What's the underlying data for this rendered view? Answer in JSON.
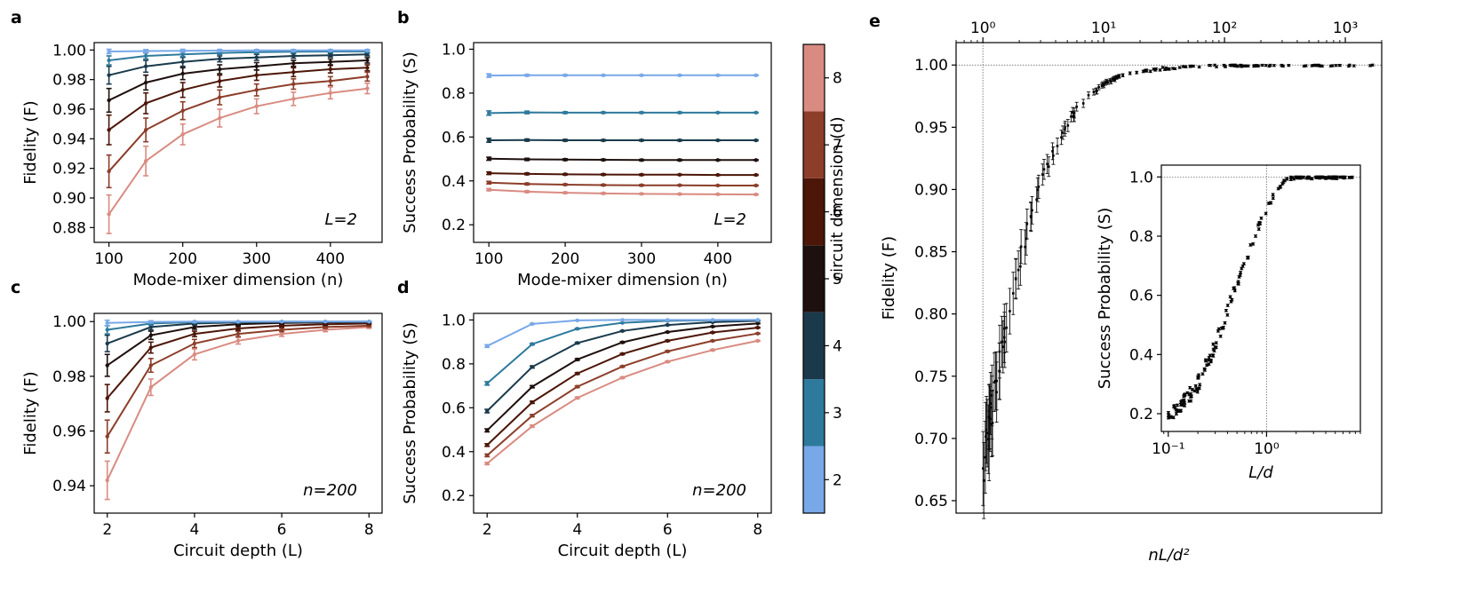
{
  "colorbar": {
    "label": "circuit dimension (d)",
    "ticks": [
      "2",
      "3",
      "4",
      "5",
      "6",
      "7",
      "8"
    ],
    "colors": [
      "#78a8e8",
      "#2e7a9c",
      "#1a3a4c",
      "#1e100e",
      "#4c1608",
      "#8c3e2a",
      "#d98b82"
    ]
  },
  "chart_data": [
    {
      "panel": "a",
      "type": "line",
      "xlabel": "Mode-mixer dimension (n)",
      "ylabel": "Fidelity (F)",
      "annotation": "L=2",
      "xlim": [
        80,
        470
      ],
      "ylim": [
        0.87,
        1.005
      ],
      "xticks": [
        100,
        200,
        300,
        400
      ],
      "yticks": [
        0.88,
        0.9,
        0.92,
        0.94,
        0.96,
        0.98,
        1.0
      ],
      "ytick_labels": [
        "0.88",
        "0.90",
        "0.92",
        "0.94",
        "0.96",
        "0.98",
        "1.00"
      ],
      "x": [
        100,
        150,
        200,
        250,
        300,
        350,
        400,
        450
      ],
      "series": [
        {
          "d": 2,
          "values": [
            0.999,
            0.9993,
            0.9995,
            0.9996,
            0.9997,
            0.9997,
            0.9998,
            0.9998
          ],
          "err": [
            0.0015,
            0.001,
            0.001,
            0.0008,
            0.0006,
            0.0006,
            0.0005,
            0.0005
          ]
        },
        {
          "d": 3,
          "values": [
            0.993,
            0.996,
            0.997,
            0.998,
            0.9985,
            0.9988,
            0.999,
            0.999
          ],
          "err": [
            0.003,
            0.002,
            0.0015,
            0.001,
            0.001,
            0.0008,
            0.0008,
            0.0008
          ]
        },
        {
          "d": 4,
          "values": [
            0.983,
            0.989,
            0.992,
            0.994,
            0.995,
            0.996,
            0.9965,
            0.997
          ],
          "err": [
            0.006,
            0.004,
            0.003,
            0.002,
            0.002,
            0.0015,
            0.0012,
            0.001
          ]
        },
        {
          "d": 5,
          "values": [
            0.966,
            0.978,
            0.984,
            0.987,
            0.989,
            0.991,
            0.992,
            0.993
          ],
          "err": [
            0.008,
            0.005,
            0.004,
            0.003,
            0.0025,
            0.002,
            0.002,
            0.0018
          ]
        },
        {
          "d": 6,
          "values": [
            0.946,
            0.964,
            0.973,
            0.979,
            0.983,
            0.985,
            0.987,
            0.988
          ],
          "err": [
            0.01,
            0.007,
            0.005,
            0.004,
            0.0035,
            0.003,
            0.0025,
            0.002
          ]
        },
        {
          "d": 7,
          "values": [
            0.918,
            0.946,
            0.959,
            0.968,
            0.973,
            0.977,
            0.979,
            0.982
          ],
          "err": [
            0.011,
            0.008,
            0.006,
            0.005,
            0.004,
            0.0035,
            0.003,
            0.003
          ]
        },
        {
          "d": 8,
          "values": [
            0.889,
            0.925,
            0.943,
            0.954,
            0.962,
            0.967,
            0.971,
            0.974
          ],
          "err": [
            0.013,
            0.01,
            0.007,
            0.006,
            0.005,
            0.0045,
            0.004,
            0.0035
          ]
        }
      ]
    },
    {
      "panel": "b",
      "type": "line",
      "xlabel": "Mode-mixer dimension (n)",
      "ylabel": "Success Probability (S)",
      "annotation": "L=2",
      "xlim": [
        80,
        470
      ],
      "ylim": [
        0.12,
        1.03
      ],
      "xticks": [
        100,
        200,
        300,
        400
      ],
      "yticks": [
        0.2,
        0.4,
        0.6,
        0.8,
        1.0
      ],
      "ytick_labels": [
        "0.2",
        "0.4",
        "0.6",
        "0.8",
        "1.0"
      ],
      "x": [
        100,
        150,
        200,
        250,
        300,
        350,
        400,
        450
      ],
      "series": [
        {
          "d": 2,
          "values": [
            0.88,
            0.881,
            0.881,
            0.881,
            0.881,
            0.881,
            0.881,
            0.881
          ],
          "err": [
            0.008,
            0.004,
            0.003,
            0.002,
            0.002,
            0.002,
            0.002,
            0.002
          ]
        },
        {
          "d": 3,
          "values": [
            0.709,
            0.712,
            0.711,
            0.711,
            0.711,
            0.711,
            0.711,
            0.711
          ],
          "err": [
            0.01,
            0.006,
            0.004,
            0.003,
            0.003,
            0.003,
            0.002,
            0.002
          ]
        },
        {
          "d": 4,
          "values": [
            0.585,
            0.586,
            0.585,
            0.585,
            0.585,
            0.585,
            0.585,
            0.585
          ],
          "err": [
            0.009,
            0.005,
            0.004,
            0.003,
            0.003,
            0.003,
            0.002,
            0.002
          ]
        },
        {
          "d": 5,
          "values": [
            0.501,
            0.498,
            0.497,
            0.496,
            0.495,
            0.495,
            0.495,
            0.495
          ],
          "err": [
            0.007,
            0.005,
            0.004,
            0.003,
            0.003,
            0.003,
            0.002,
            0.002
          ]
        },
        {
          "d": 6,
          "values": [
            0.435,
            0.432,
            0.43,
            0.429,
            0.428,
            0.428,
            0.427,
            0.427
          ],
          "err": [
            0.006,
            0.004,
            0.003,
            0.003,
            0.003,
            0.002,
            0.002,
            0.002
          ]
        },
        {
          "d": 7,
          "values": [
            0.392,
            0.386,
            0.383,
            0.381,
            0.38,
            0.38,
            0.379,
            0.379
          ],
          "err": [
            0.006,
            0.004,
            0.003,
            0.003,
            0.003,
            0.002,
            0.002,
            0.002
          ]
        },
        {
          "d": 8,
          "values": [
            0.36,
            0.351,
            0.346,
            0.343,
            0.341,
            0.34,
            0.339,
            0.338
          ],
          "err": [
            0.005,
            0.004,
            0.003,
            0.003,
            0.002,
            0.002,
            0.002,
            0.002
          ]
        }
      ]
    },
    {
      "panel": "c",
      "type": "line",
      "xlabel": "Circuit depth (L)",
      "ylabel": "Fidelity (F)",
      "annotation": "n=200",
      "xlim": [
        1.7,
        8.3
      ],
      "ylim": [
        0.93,
        1.003
      ],
      "xticks": [
        2,
        4,
        6,
        8
      ],
      "yticks": [
        0.94,
        0.96,
        0.98,
        1.0
      ],
      "ytick_labels": [
        "0.94",
        "0.96",
        "0.98",
        "1.00"
      ],
      "x": [
        2,
        3,
        4,
        5,
        6,
        7,
        8
      ],
      "series": [
        {
          "d": 2,
          "values": [
            0.9995,
            0.9999,
            1.0,
            1.0,
            1.0,
            1.0,
            1.0
          ],
          "err": [
            0.001,
            0.0004,
            0.0002,
            0.0001,
            0.0001,
            0.0001,
            0.0001
          ]
        },
        {
          "d": 3,
          "values": [
            0.997,
            0.9993,
            0.9998,
            0.9999,
            1.0,
            1.0,
            1.0
          ],
          "err": [
            0.0015,
            0.0006,
            0.0003,
            0.0002,
            0.0001,
            0.0001,
            0.0001
          ]
        },
        {
          "d": 4,
          "values": [
            0.992,
            0.998,
            0.9993,
            0.9997,
            0.9999,
            0.9999,
            1.0
          ],
          "err": [
            0.003,
            0.001,
            0.0005,
            0.0003,
            0.0002,
            0.0001,
            0.0001
          ]
        },
        {
          "d": 5,
          "values": [
            0.984,
            0.995,
            0.998,
            0.999,
            0.9995,
            0.9997,
            0.9998
          ],
          "err": [
            0.004,
            0.0015,
            0.0008,
            0.0005,
            0.0003,
            0.0002,
            0.0002
          ]
        },
        {
          "d": 6,
          "values": [
            0.972,
            0.9905,
            0.9955,
            0.9975,
            0.9985,
            0.999,
            0.9993
          ],
          "err": [
            0.005,
            0.002,
            0.001,
            0.0007,
            0.0005,
            0.0004,
            0.0003
          ]
        },
        {
          "d": 7,
          "values": [
            0.958,
            0.984,
            0.992,
            0.9955,
            0.997,
            0.998,
            0.9985
          ],
          "err": [
            0.006,
            0.0025,
            0.0015,
            0.001,
            0.0007,
            0.0005,
            0.0004
          ]
        },
        {
          "d": 8,
          "values": [
            0.942,
            0.976,
            0.988,
            0.993,
            0.9955,
            0.997,
            0.998
          ],
          "err": [
            0.007,
            0.003,
            0.002,
            0.0012,
            0.0009,
            0.0007,
            0.0005
          ]
        }
      ]
    },
    {
      "panel": "d",
      "type": "line",
      "xlabel": "Circuit depth (L)",
      "ylabel": "Success Probability (S)",
      "annotation": "n=200",
      "xlim": [
        1.7,
        8.3
      ],
      "ylim": [
        0.12,
        1.03
      ],
      "xticks": [
        2,
        4,
        6,
        8
      ],
      "yticks": [
        0.2,
        0.4,
        0.6,
        0.8,
        1.0
      ],
      "ytick_labels": [
        "0.2",
        "0.4",
        "0.6",
        "0.8",
        "1.0"
      ],
      "x": [
        2,
        3,
        4,
        5,
        6,
        7,
        8
      ],
      "series": [
        {
          "d": 2,
          "values": [
            0.881,
            0.982,
            0.998,
            1.0,
            1.0,
            1.0,
            1.0
          ],
          "err": [
            0.006,
            0.002,
            0.001,
            0.0005,
            0.0003,
            0.0002,
            0.0002
          ]
        },
        {
          "d": 3,
          "values": [
            0.711,
            0.89,
            0.96,
            0.987,
            0.996,
            0.999,
            1.0
          ],
          "err": [
            0.008,
            0.004,
            0.002,
            0.001,
            0.001,
            0.0005,
            0.0003
          ]
        },
        {
          "d": 4,
          "values": [
            0.585,
            0.786,
            0.895,
            0.95,
            0.977,
            0.99,
            0.996
          ],
          "err": [
            0.008,
            0.005,
            0.003,
            0.002,
            0.002,
            0.001,
            0.001
          ]
        },
        {
          "d": 5,
          "values": [
            0.497,
            0.696,
            0.82,
            0.898,
            0.945,
            0.97,
            0.984
          ],
          "err": [
            0.007,
            0.005,
            0.004,
            0.003,
            0.002,
            0.002,
            0.001
          ]
        },
        {
          "d": 6,
          "values": [
            0.43,
            0.625,
            0.756,
            0.845,
            0.905,
            0.943,
            0.965
          ],
          "err": [
            0.006,
            0.005,
            0.004,
            0.003,
            0.003,
            0.002,
            0.002
          ]
        },
        {
          "d": 7,
          "values": [
            0.383,
            0.564,
            0.696,
            0.788,
            0.857,
            0.905,
            0.938
          ],
          "err": [
            0.006,
            0.005,
            0.004,
            0.003,
            0.003,
            0.002,
            0.002
          ]
        },
        {
          "d": 8,
          "values": [
            0.346,
            0.516,
            0.645,
            0.737,
            0.81,
            0.863,
            0.905
          ],
          "err": [
            0.005,
            0.005,
            0.004,
            0.003,
            0.003,
            0.003,
            0.002
          ]
        }
      ]
    },
    {
      "panel": "e",
      "type": "scatter",
      "xlabel": "nL/d²",
      "ylabel": "Fidelity (F)",
      "x_scale": "log",
      "xlim": [
        0.6,
        2000
      ],
      "ylim": [
        0.64,
        1.018
      ],
      "xticks": [
        1,
        10,
        100,
        1000
      ],
      "xtick_labels": [
        "10⁰",
        "10¹",
        "10²",
        "10³"
      ],
      "xaxis_position": "top",
      "yticks": [
        0.65,
        0.7,
        0.75,
        0.8,
        0.85,
        0.9,
        0.95,
        1.0
      ],
      "ytick_labels": [
        "0.65",
        "0.70",
        "0.75",
        "0.80",
        "0.85",
        "0.90",
        "0.95",
        "1.00"
      ],
      "reference_lines": {
        "x": 1,
        "y": 1.0
      },
      "trend": {
        "x": [
          1.0,
          1.2,
          1.5,
          2.0,
          2.5,
          3.0,
          4.0,
          5.0,
          6.0,
          8.0,
          10.0,
          14.0,
          20.0,
          30.0,
          50.0,
          100.0,
          200.0,
          500.0,
          1000.0,
          1800.0
        ],
        "values": [
          0.675,
          0.725,
          0.785,
          0.84,
          0.88,
          0.905,
          0.935,
          0.952,
          0.965,
          0.977,
          0.985,
          0.991,
          0.995,
          0.997,
          0.999,
          0.9995,
          1.0,
          1.0,
          1.0,
          1.0
        ]
      },
      "point_count": 180,
      "inset": {
        "type": "scatter",
        "xlabel": "L/d",
        "ylabel": "Success Probability (S)",
        "x_scale": "log",
        "xlim": [
          0.085,
          9
        ],
        "ylim": [
          0.14,
          1.04
        ],
        "xticks": [
          0.1,
          1
        ],
        "xtick_labels": [
          "10⁻¹",
          "10⁰"
        ],
        "yticks": [
          0.2,
          0.4,
          0.6,
          0.8,
          1.0
        ],
        "ytick_labels": [
          "0.2",
          "0.4",
          "0.6",
          "0.8",
          "1.0"
        ],
        "reference_lines": {
          "x": 1,
          "y": 1.0
        },
        "trend": {
          "x": [
            0.1,
            0.15,
            0.2,
            0.3,
            0.4,
            0.5,
            0.6,
            0.7,
            0.8,
            1.0,
            1.2,
            1.5,
            2.0,
            3.0,
            5.0,
            8.0
          ],
          "values": [
            0.19,
            0.24,
            0.3,
            0.43,
            0.55,
            0.64,
            0.71,
            0.77,
            0.82,
            0.89,
            0.945,
            0.985,
            1.0,
            1.0,
            1.0,
            1.0
          ]
        },
        "point_count": 180
      }
    }
  ]
}
